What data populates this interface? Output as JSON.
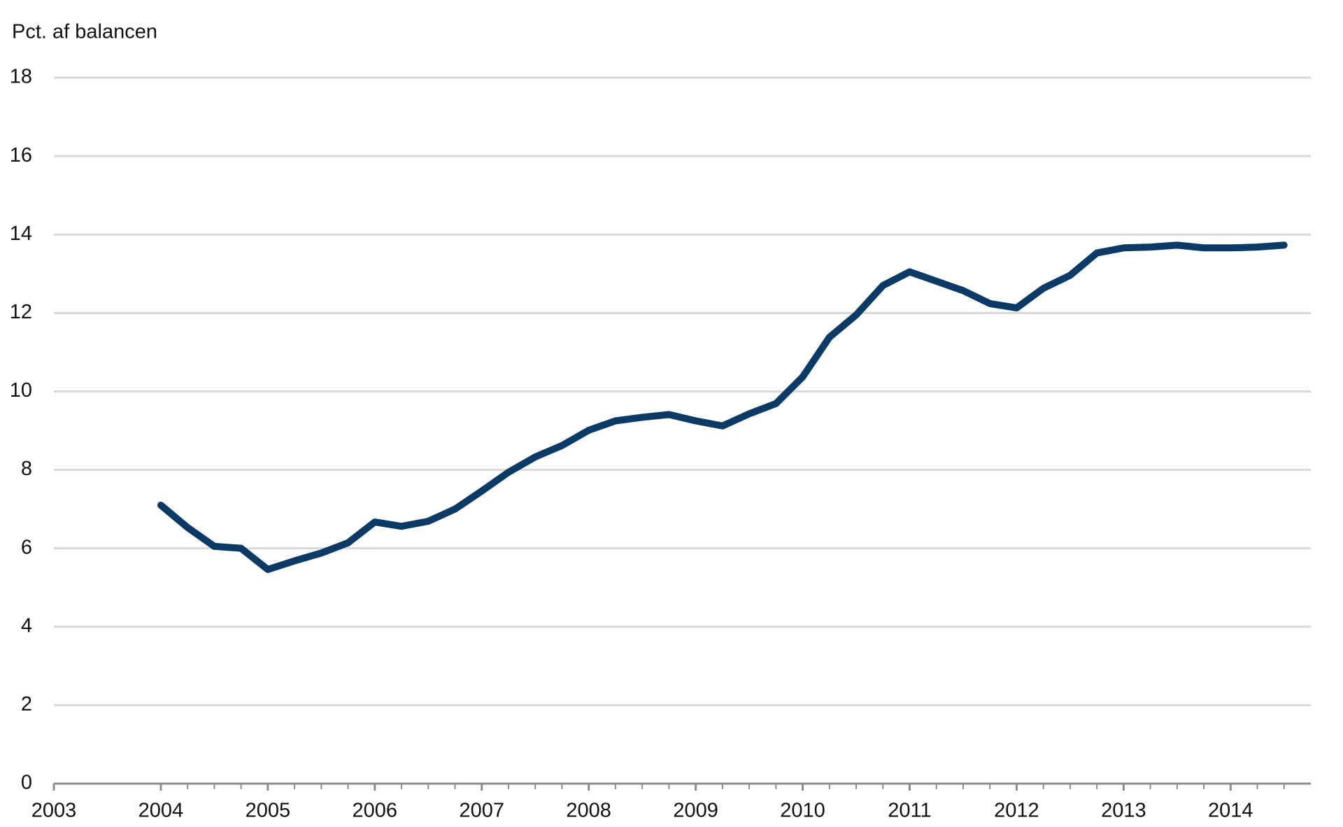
{
  "chart_data": {
    "type": "line",
    "ylabel": "Pct. af balancen",
    "x": [
      2004,
      2004.25,
      2004.5,
      2004.75,
      2005,
      2005.25,
      2005.5,
      2005.75,
      2006,
      2006.25,
      2006.5,
      2006.75,
      2007,
      2007.25,
      2007.5,
      2007.75,
      2008,
      2008.25,
      2008.5,
      2008.75,
      2009,
      2009.25,
      2009.5,
      2009.75,
      2010,
      2010.25,
      2010.5,
      2010.75,
      2011,
      2011.25,
      2011.5,
      2011.75,
      2012,
      2012.25,
      2012.5,
      2012.75,
      2013,
      2013.25,
      2013.5,
      2013.75,
      2014,
      2014.25,
      2014.5
    ],
    "series": [
      {
        "color": "#0b3a66",
        "values": [
          7.1,
          6.53,
          6.05,
          6.0,
          5.46,
          5.68,
          5.88,
          6.14,
          6.67,
          6.56,
          6.69,
          7.0,
          7.46,
          7.94,
          8.33,
          8.62,
          9.01,
          9.25,
          9.34,
          9.41,
          9.25,
          9.12,
          9.43,
          9.69,
          10.37,
          11.38,
          11.95,
          12.7,
          13.05,
          12.81,
          12.57,
          12.24,
          12.13,
          12.63,
          12.96,
          13.53,
          13.66,
          13.68,
          13.73,
          13.66,
          13.66,
          13.68,
          13.73
        ]
      }
    ],
    "xlim": [
      2003,
      2014.75
    ],
    "xticks": [
      2003,
      2004,
      2005,
      2006,
      2007,
      2008,
      2009,
      2010,
      2011,
      2012,
      2013,
      2014
    ],
    "ylim": [
      0,
      18
    ],
    "yticks": [
      0,
      2,
      4,
      6,
      8,
      10,
      12,
      14,
      16,
      18
    ],
    "grid": true
  }
}
